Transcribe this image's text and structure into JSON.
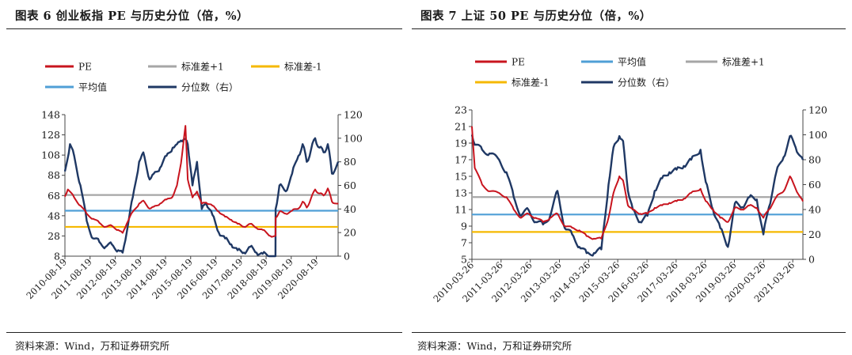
{
  "colors": {
    "pe": "#c8141e",
    "plus1": "#a6a6a6",
    "minus1": "#f5b800",
    "mean": "#4f9fd6",
    "pct": "#1f3864"
  },
  "charts": [
    {
      "figure_title": "图表 6   创业板指 PE 与历史分位（倍，%）",
      "source": "资料来源：Wind，万和证券研究所",
      "legend": {
        "pe": "PE",
        "plus1": "标准差+1",
        "minus1": "标准差-1",
        "mean": "平均值",
        "pct": "分位数（右）"
      }
    },
    {
      "figure_title": "图表 7   上证 50 PE 与历史分位（倍，%）",
      "source": "资料来源：Wind，万和证券研究所",
      "legend": {
        "pe": "PE",
        "mean": "平均值",
        "plus1": "标准差+1",
        "minus1": "标准差-1",
        "pct": "分位数（右）"
      }
    }
  ],
  "chart_data": [
    {
      "type": "line",
      "ylim": [
        8,
        148
      ],
      "y2lim": [
        0,
        120
      ],
      "y_ticks": [
        8,
        28,
        48,
        68,
        88,
        108,
        128,
        148
      ],
      "y2_ticks": [
        0,
        20,
        40,
        60,
        80,
        100,
        120
      ],
      "x_start": "2010-08-19",
      "x_end": "2021-06-30",
      "x_ticks": [
        "2010-08-19",
        "2011-08-19",
        "2012-08-19",
        "2013-08-19",
        "2014-08-19",
        "2015-08-19",
        "2016-08-19",
        "2017-08-19",
        "2018-08-19",
        "2019-08-19",
        "2020-08-19"
      ],
      "hlines": {
        "plus1": 68.5,
        "mean": 53,
        "minus1": 37
      },
      "series": [
        {
          "name": "PE",
          "key": "pe",
          "axis": "left",
          "x": [
            "2010-08-19",
            "2010-10-01",
            "2011-01-01",
            "2011-04-01",
            "2011-07-01",
            "2011-10-01",
            "2012-01-01",
            "2012-04-01",
            "2012-07-01",
            "2012-10-01",
            "2012-12-04",
            "2013-02-01",
            "2013-05-01",
            "2013-08-01",
            "2013-10-01",
            "2014-01-01",
            "2014-03-01",
            "2014-06-01",
            "2014-09-01",
            "2014-12-01",
            "2015-02-01",
            "2015-04-01",
            "2015-06-05",
            "2015-07-08",
            "2015-09-15",
            "2015-11-20",
            "2016-01-28",
            "2016-04-01",
            "2016-07-01",
            "2016-10-01",
            "2017-01-01",
            "2017-04-01",
            "2017-07-01",
            "2017-10-01",
            "2018-01-01",
            "2018-04-01",
            "2018-07-01",
            "2018-10-19",
            "2019-01-02",
            "2019-01-04",
            "2019-03-01",
            "2019-06-01",
            "2019-09-01",
            "2019-12-01",
            "2020-02-01",
            "2020-04-01",
            "2020-06-01",
            "2020-08-01",
            "2020-10-01",
            "2020-12-01",
            "2021-02-01",
            "2021-04-01",
            "2021-06-30"
          ],
          "y": [
            67,
            74,
            66,
            58,
            50,
            45,
            41,
            37,
            38,
            34,
            31,
            40,
            52,
            60,
            63,
            55,
            57,
            60,
            64,
            67,
            78,
            100,
            137,
            84,
            66,
            72,
            60,
            61,
            58,
            52,
            47,
            44,
            40,
            37,
            40,
            36,
            34,
            28,
            28,
            46,
            52,
            50,
            53,
            55,
            62,
            56,
            65,
            74,
            70,
            68,
            75,
            62,
            60
          ]
        },
        {
          "name": "分位数（右）",
          "key": "pct",
          "axis": "right",
          "x": [
            "2010-08-19",
            "2010-11-01",
            "2011-01-01",
            "2011-04-01",
            "2011-07-01",
            "2011-10-01",
            "2012-01-01",
            "2012-04-01",
            "2012-07-01",
            "2012-10-01",
            "2012-12-04",
            "2013-02-01",
            "2013-05-01",
            "2013-08-01",
            "2013-10-01",
            "2014-01-01",
            "2014-03-01",
            "2014-06-01",
            "2014-09-01",
            "2014-12-01",
            "2015-02-01",
            "2015-04-01",
            "2015-06-05",
            "2015-07-08",
            "2015-09-15",
            "2015-11-20",
            "2016-01-28",
            "2016-04-01",
            "2016-07-01",
            "2016-10-01",
            "2017-01-01",
            "2017-04-01",
            "2017-07-01",
            "2017-10-01",
            "2018-01-01",
            "2018-04-01",
            "2018-07-01",
            "2018-10-19",
            "2019-01-02",
            "2019-01-04",
            "2019-03-01",
            "2019-06-01",
            "2019-09-01",
            "2019-12-01",
            "2020-02-01",
            "2020-04-01",
            "2020-06-01",
            "2020-08-01",
            "2020-10-01",
            "2020-12-01",
            "2021-02-01",
            "2021-04-01",
            "2021-06-30"
          ],
          "y": [
            72,
            95,
            85,
            60,
            30,
            15,
            12,
            8,
            10,
            5,
            3,
            20,
            50,
            80,
            88,
            65,
            70,
            75,
            85,
            92,
            95,
            98,
            99,
            95,
            60,
            80,
            40,
            45,
            35,
            20,
            15,
            10,
            5,
            3,
            8,
            3,
            2,
            0,
            0,
            40,
            60,
            55,
            70,
            85,
            95,
            80,
            90,
            100,
            92,
            88,
            95,
            70,
            80
          ]
        }
      ]
    },
    {
      "type": "line",
      "ylim": [
        5,
        23
      ],
      "y2lim": [
        0,
        120
      ],
      "y_ticks": [
        5,
        7,
        9,
        11,
        13,
        15,
        17,
        19,
        21,
        23
      ],
      "y2_ticks": [
        0,
        20,
        40,
        60,
        80,
        100,
        120
      ],
      "x_start": "2010-03-26",
      "x_end": "2021-07-31",
      "x_ticks": [
        "2010-03-26",
        "2011-03-26",
        "2012-03-26",
        "2013-03-26",
        "2014-03-26",
        "2015-03-26",
        "2016-03-26",
        "2017-03-26",
        "2018-03-26",
        "2019-03-26",
        "2020-03-26",
        "2021-03-26"
      ],
      "hlines": {
        "plus1": 12.5,
        "mean": 10.4,
        "minus1": 8.3
      },
      "series": [
        {
          "name": "PE",
          "key": "pe",
          "axis": "left",
          "x": [
            "2010-03-26",
            "2010-05-01",
            "2010-08-01",
            "2010-11-01",
            "2011-03-01",
            "2011-06-01",
            "2011-09-01",
            "2011-12-01",
            "2012-03-01",
            "2012-06-01",
            "2012-09-01",
            "2012-12-01",
            "2013-03-01",
            "2013-06-01",
            "2013-09-01",
            "2013-12-01",
            "2014-03-01",
            "2014-06-01",
            "2014-09-01",
            "2014-12-01",
            "2015-02-01",
            "2015-04-15",
            "2015-06-01",
            "2015-08-01",
            "2015-10-01",
            "2016-01-01",
            "2016-04-01",
            "2016-07-01",
            "2016-10-01",
            "2017-01-01",
            "2017-04-01",
            "2017-07-01",
            "2017-10-01",
            "2018-01-26",
            "2018-04-01",
            "2018-07-01",
            "2018-10-01",
            "2019-01-04",
            "2019-04-01",
            "2019-07-01",
            "2019-10-01",
            "2020-01-01",
            "2020-03-23",
            "2020-06-01",
            "2020-09-01",
            "2020-12-01",
            "2021-02-18",
            "2021-05-01",
            "2021-07-31"
          ],
          "y": [
            21,
            16,
            14,
            13.2,
            13,
            12.5,
            11,
            10,
            10.5,
            10,
            9.5,
            10,
            10.5,
            9,
            8.8,
            8.5,
            7.8,
            7.5,
            7.5,
            10,
            13,
            15,
            14.5,
            11.5,
            11,
            10.5,
            10.5,
            11.2,
            11.5,
            11.8,
            12,
            12.3,
            13,
            13.5,
            12,
            11,
            10,
            9.5,
            11.2,
            11,
            11.5,
            11.2,
            10,
            11,
            12.5,
            13.2,
            15,
            13.5,
            12
          ]
        },
        {
          "name": "分位数（右）",
          "key": "pct",
          "axis": "right",
          "x": [
            "2010-03-26",
            "2010-05-01",
            "2010-08-01",
            "2010-11-01",
            "2011-03-01",
            "2011-06-01",
            "2011-09-01",
            "2011-12-01",
            "2012-03-01",
            "2012-06-01",
            "2012-09-01",
            "2012-12-01",
            "2013-03-01",
            "2013-06-01",
            "2013-09-01",
            "2013-12-01",
            "2014-03-01",
            "2014-06-01",
            "2014-09-01",
            "2014-12-01",
            "2015-02-01",
            "2015-04-15",
            "2015-06-01",
            "2015-08-01",
            "2015-10-01",
            "2016-01-01",
            "2016-04-01",
            "2016-07-01",
            "2016-10-01",
            "2017-01-01",
            "2017-04-01",
            "2017-07-01",
            "2017-10-01",
            "2018-01-26",
            "2018-04-01",
            "2018-07-01",
            "2018-10-01",
            "2019-01-04",
            "2019-04-01",
            "2019-07-01",
            "2019-10-01",
            "2020-01-01",
            "2020-03-23",
            "2020-06-01",
            "2020-09-01",
            "2020-12-01",
            "2021-02-18",
            "2021-05-01",
            "2021-07-31"
          ],
          "y": [
            100,
            92,
            88,
            85,
            80,
            70,
            50,
            35,
            40,
            30,
            28,
            35,
            55,
            25,
            20,
            10,
            5,
            5,
            8,
            60,
            90,
            99,
            95,
            55,
            40,
            30,
            35,
            55,
            65,
            70,
            72,
            75,
            80,
            88,
            62,
            40,
            25,
            10,
            45,
            42,
            50,
            48,
            20,
            42,
            70,
            82,
            99,
            90,
            80
          ]
        }
      ]
    }
  ]
}
